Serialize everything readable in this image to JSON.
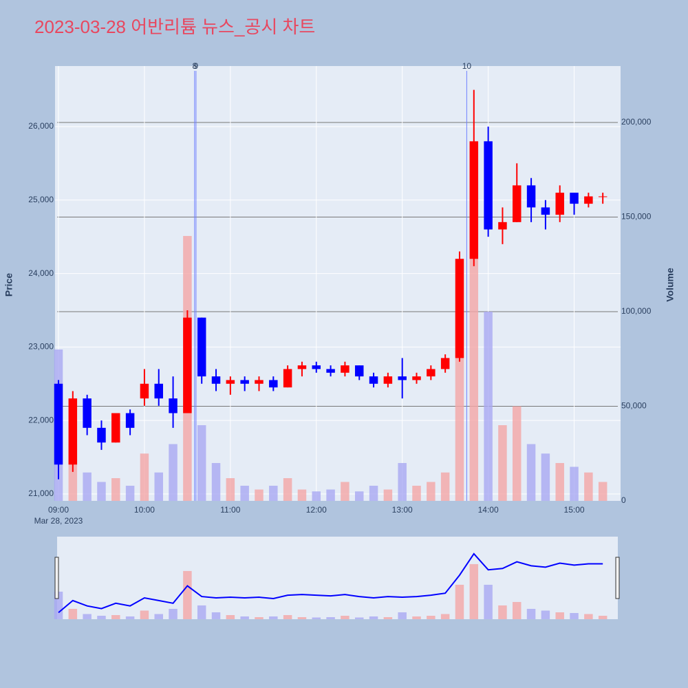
{
  "chart_data": {
    "type": "candlestick",
    "title": "2023-03-28 어반리튬 뉴스_공시 차트",
    "x": [
      "2023-03-28 09:00",
      "2023-03-28 09:10",
      "2023-03-28 09:20",
      "2023-03-28 09:30",
      "2023-03-28 09:40",
      "2023-03-28 09:50",
      "2023-03-28 10:00",
      "2023-03-28 10:10",
      "2023-03-28 10:20",
      "2023-03-28 10:30",
      "2023-03-28 10:40",
      "2023-03-28 10:50",
      "2023-03-28 11:00",
      "2023-03-28 11:10",
      "2023-03-28 11:20",
      "2023-03-28 11:30",
      "2023-03-28 11:40",
      "2023-03-28 11:50",
      "2023-03-28 12:00",
      "2023-03-28 12:10",
      "2023-03-28 12:20",
      "2023-03-28 12:30",
      "2023-03-28 12:40",
      "2023-03-28 12:50",
      "2023-03-28 13:00",
      "2023-03-28 13:10",
      "2023-03-28 13:20",
      "2023-03-28 13:30",
      "2023-03-28 13:40",
      "2023-03-28 13:50",
      "2023-03-28 14:00",
      "2023-03-28 14:10",
      "2023-03-28 14:20",
      "2023-03-28 14:30",
      "2023-03-28 14:40",
      "2023-03-28 14:50",
      "2023-03-28 15:00",
      "2023-03-28 15:10",
      "2023-03-28 15:20"
    ],
    "open": [
      22500,
      21400,
      22300,
      21900,
      21700,
      22100,
      22300,
      22500,
      22300,
      22100,
      23400,
      22600,
      22500,
      22550,
      22500,
      22550,
      22450,
      22700,
      22750,
      22700,
      22650,
      22750,
      22600,
      22500,
      22600,
      22550,
      22600,
      22700,
      22850,
      24200,
      25800,
      24600,
      24700,
      25200,
      24900,
      24800,
      25100,
      24950,
      25050
    ],
    "high": [
      22550,
      22400,
      22350,
      22000,
      22100,
      22150,
      22700,
      22700,
      22600,
      23500,
      23400,
      22700,
      22600,
      22600,
      22600,
      22600,
      22750,
      22800,
      22800,
      22750,
      22800,
      22750,
      22650,
      22650,
      22850,
      22650,
      22750,
      22900,
      24300,
      26500,
      26000,
      24900,
      25500,
      25300,
      25000,
      25200,
      25100,
      25100,
      25100
    ],
    "low": [
      21200,
      21300,
      21800,
      21600,
      21700,
      21800,
      22200,
      22200,
      21900,
      22100,
      22500,
      22400,
      22350,
      22400,
      22400,
      22400,
      22450,
      22600,
      22650,
      22600,
      22600,
      22550,
      22450,
      22450,
      22300,
      22500,
      22550,
      22650,
      22800,
      24100,
      24500,
      24400,
      24700,
      24700,
      24600,
      24700,
      24800,
      24900,
      24950
    ],
    "close": [
      21400,
      22300,
      21900,
      21700,
      22100,
      21900,
      22500,
      22300,
      22100,
      23400,
      22600,
      22500,
      22550,
      22500,
      22550,
      22450,
      22700,
      22750,
      22700,
      22650,
      22750,
      22600,
      22500,
      22600,
      22550,
      22600,
      22700,
      22850,
      24200,
      25800,
      24600,
      24700,
      25200,
      24900,
      24800,
      25100,
      24950,
      25050,
      25050
    ],
    "volume": [
      80000,
      30000,
      15000,
      10000,
      12000,
      8000,
      25000,
      15000,
      30000,
      140000,
      40000,
      20000,
      12000,
      8000,
      6000,
      8000,
      12000,
      6000,
      5000,
      6000,
      10000,
      5000,
      8000,
      6000,
      20000,
      8000,
      10000,
      15000,
      100000,
      160000,
      100000,
      40000,
      50000,
      30000,
      25000,
      20000,
      18000,
      15000,
      10000
    ],
    "up_color": "#ff0000",
    "down_color": "#0000ff",
    "volume_up_color": "#f4a6a6",
    "volume_down_color": "#a9a9f2",
    "xlim": [
      "2023-03-28 09:00",
      "2023-03-28 15:30"
    ],
    "xticks": [
      {
        "value": "2023-03-28 09:00",
        "label": "09:00"
      },
      {
        "value": "2023-03-28 10:00",
        "label": "10:00"
      },
      {
        "value": "2023-03-28 11:00",
        "label": "11:00"
      },
      {
        "value": "2023-03-28 12:00",
        "label": "12:00"
      },
      {
        "value": "2023-03-28 13:00",
        "label": "13:00"
      },
      {
        "value": "2023-03-28 14:00",
        "label": "14:00"
      },
      {
        "value": "2023-03-28 15:00",
        "label": "15:00"
      }
    ],
    "x_date_label": "Mar 28, 2023",
    "ylim": [
      20906,
      26824
    ],
    "yticks": [
      {
        "value": 21000,
        "label": "21,000"
      },
      {
        "value": 22000,
        "label": "22,000"
      },
      {
        "value": 23000,
        "label": "23,000"
      },
      {
        "value": 24000,
        "label": "24,000"
      },
      {
        "value": 25000,
        "label": "25,000"
      },
      {
        "value": 26000,
        "label": "26,000"
      }
    ],
    "y_label": "Price",
    "y2lim": [
      0,
      229800
    ],
    "y2ticks": [
      0,
      {
        "value": 50000,
        "label": "50,000"
      },
      {
        "value": 100000,
        "label": "100,000"
      },
      {
        "value": 150000,
        "label": "150,000"
      },
      {
        "value": 200000,
        "label": "200,000"
      }
    ],
    "y2_label": "Volume",
    "annotations": [
      {
        "x": "2023-03-28 10:35",
        "label": "8"
      },
      {
        "x": "2023-03-28 10:36",
        "label": "9"
      },
      {
        "x": "2023-03-28 13:45",
        "label": "10"
      }
    ]
  }
}
